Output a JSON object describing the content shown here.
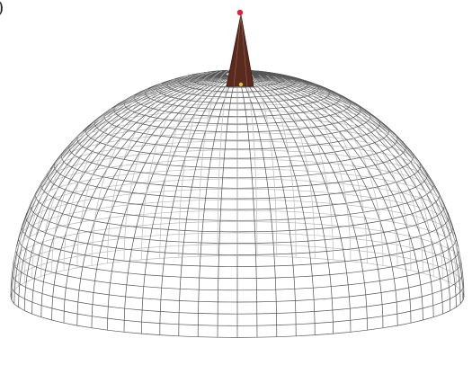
{
  "caption_fragment": ")"
}
